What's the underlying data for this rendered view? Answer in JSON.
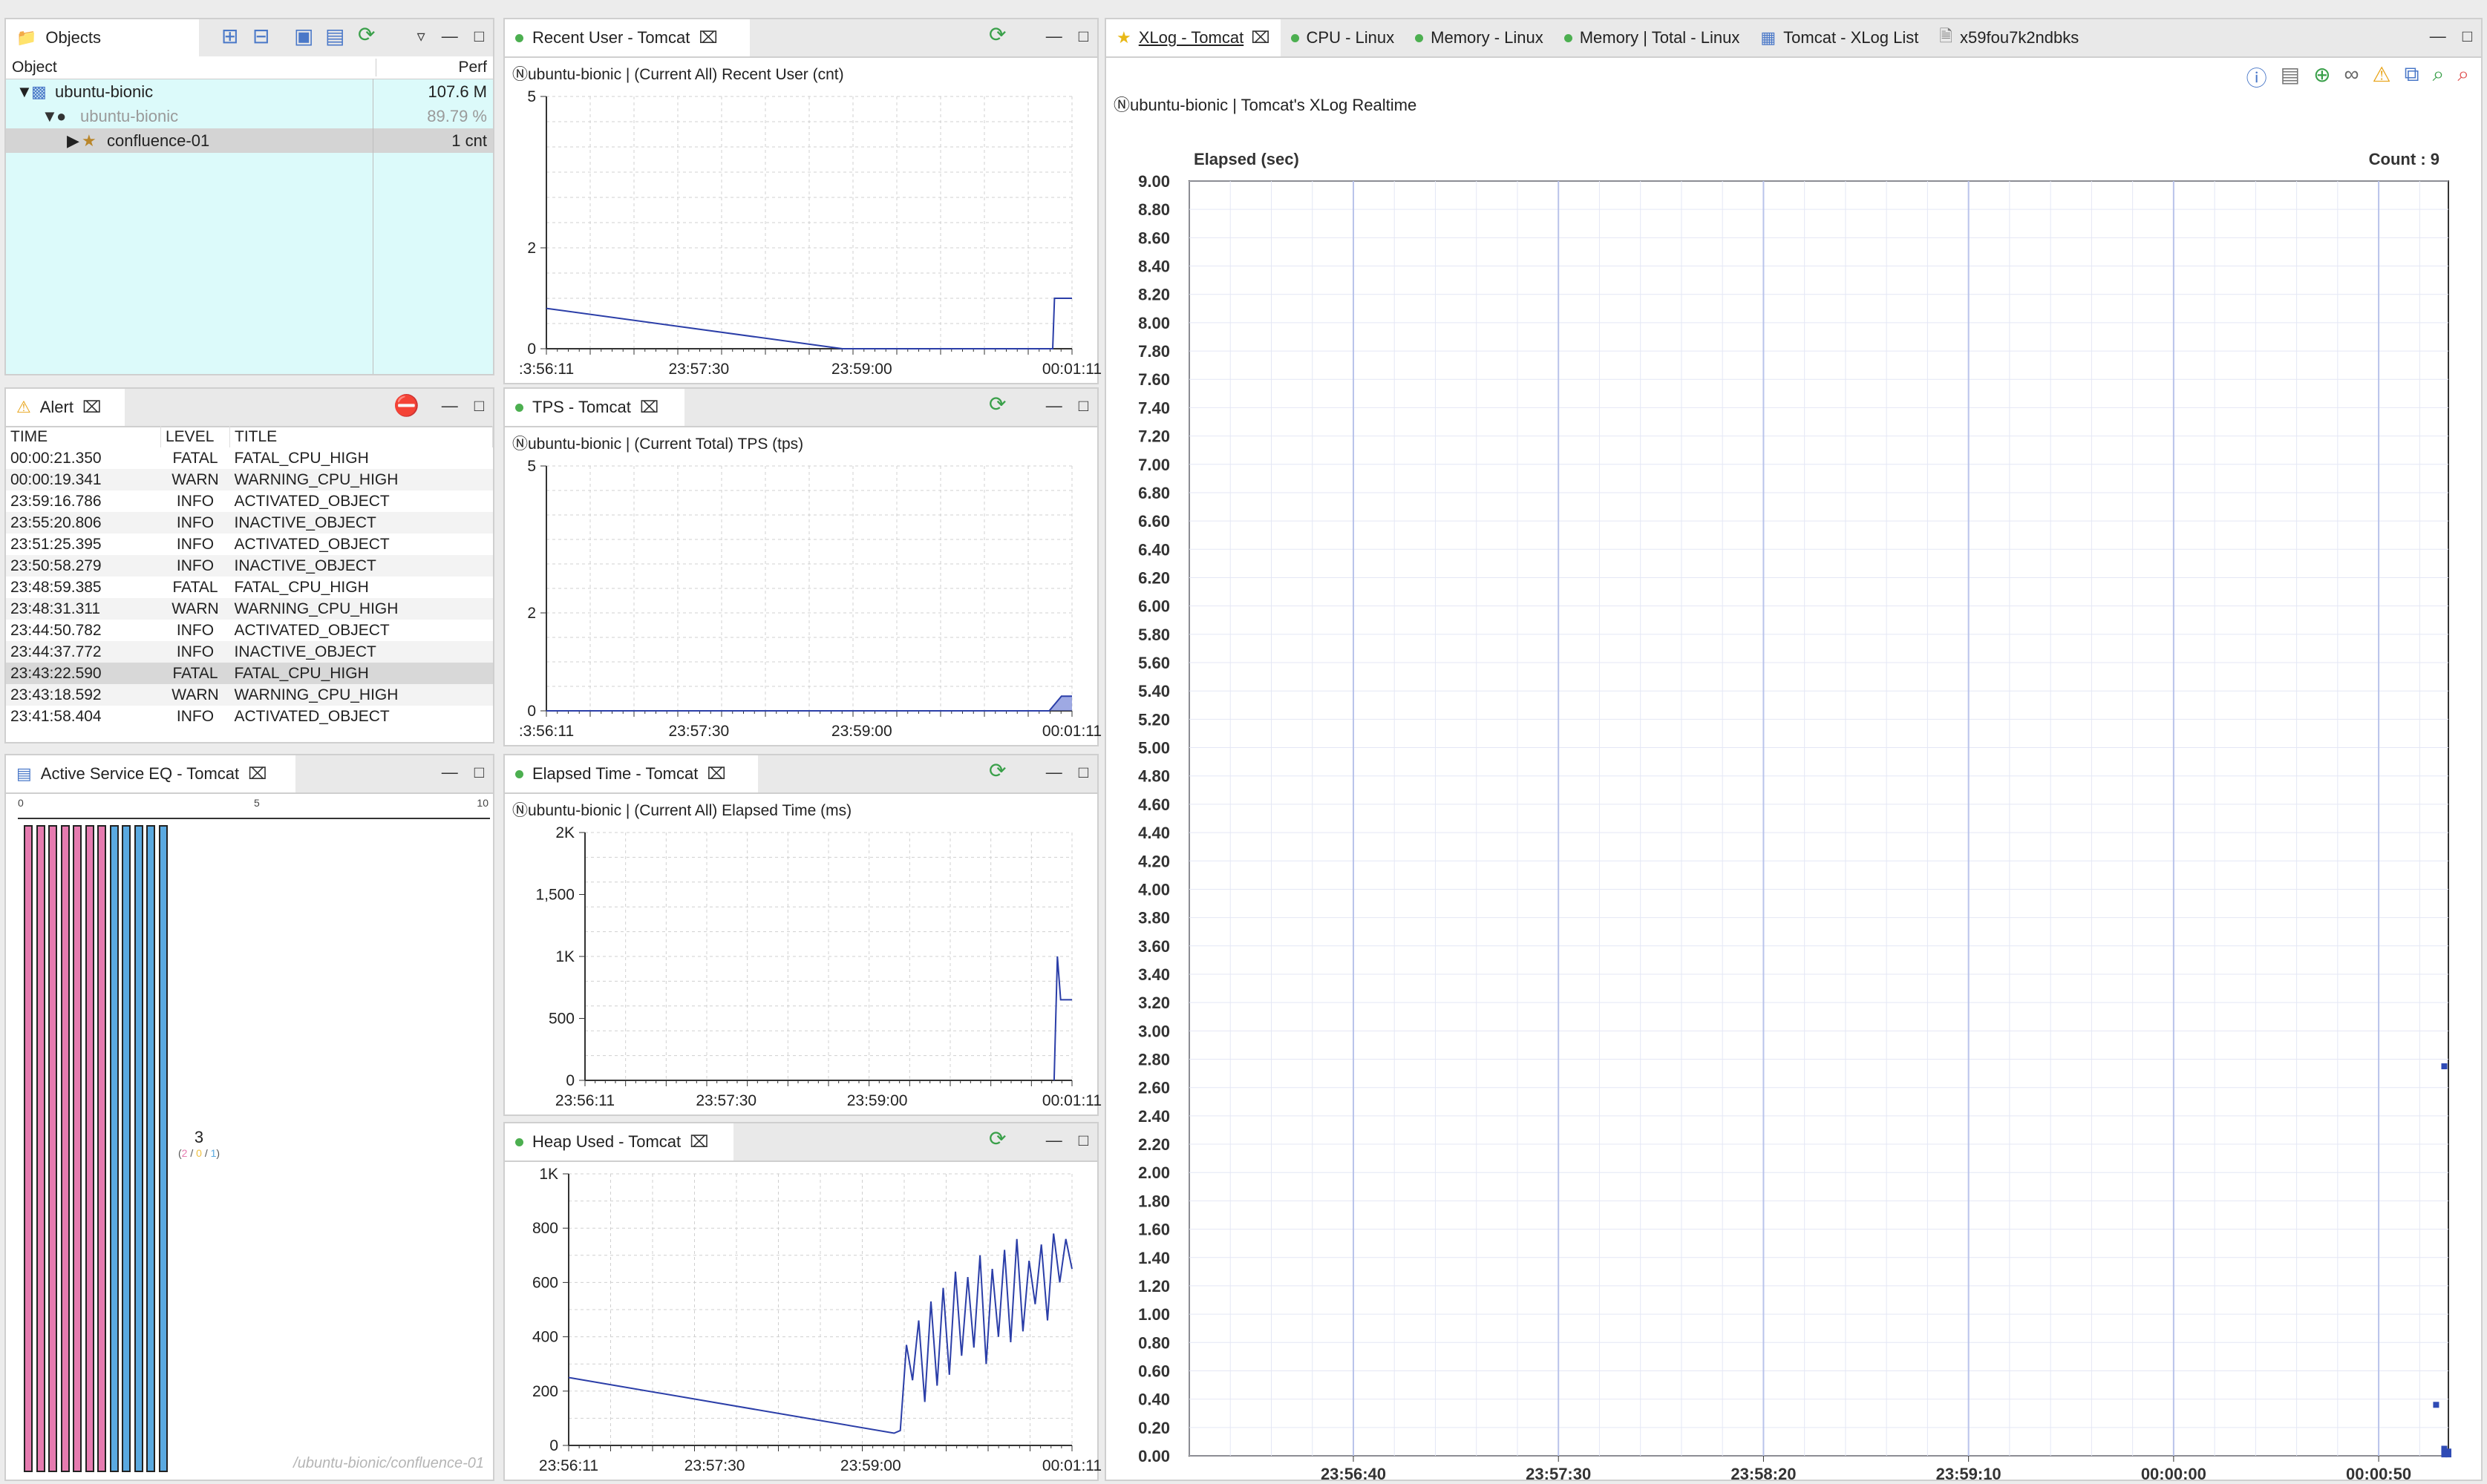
{
  "objects_panel": {
    "tab_label": "Objects",
    "col_object": "Object",
    "col_perf": "Perf",
    "rows": [
      {
        "name": "ubuntu-bionic",
        "perf": "107.6 M"
      },
      {
        "name": "ubuntu-bionic",
        "perf": "89.79 %"
      },
      {
        "name": "confluence-01",
        "perf": "1 cnt"
      }
    ]
  },
  "alert_panel": {
    "tab_label": "Alert",
    "columns": [
      "TIME",
      "LEVEL",
      "TITLE"
    ],
    "rows": [
      [
        "00:00:21.350",
        "FATAL",
        "FATAL_CPU_HIGH"
      ],
      [
        "00:00:19.341",
        "WARN",
        "WARNING_CPU_HIGH"
      ],
      [
        "23:59:16.786",
        "INFO",
        "ACTIVATED_OBJECT"
      ],
      [
        "23:55:20.806",
        "INFO",
        "INACTIVE_OBJECT"
      ],
      [
        "23:51:25.395",
        "INFO",
        "ACTIVATED_OBJECT"
      ],
      [
        "23:50:58.279",
        "INFO",
        "INACTIVE_OBJECT"
      ],
      [
        "23:48:59.385",
        "FATAL",
        "FATAL_CPU_HIGH"
      ],
      [
        "23:48:31.311",
        "WARN",
        "WARNING_CPU_HIGH"
      ],
      [
        "23:44:50.782",
        "INFO",
        "ACTIVATED_OBJECT"
      ],
      [
        "23:44:37.772",
        "INFO",
        "INACTIVE_OBJECT"
      ],
      [
        "23:43:22.590",
        "FATAL",
        "FATAL_CPU_HIGH"
      ],
      [
        "23:43:18.592",
        "WARN",
        "WARNING_CPU_HIGH"
      ],
      [
        "23:41:58.404",
        "INFO",
        "ACTIVATED_OBJECT"
      ]
    ]
  },
  "active_service": {
    "tab_label": "Active Service EQ - Tomcat",
    "scale": [
      "0",
      "5",
      "10"
    ],
    "total": "3",
    "breakdown_open": "(",
    "breakdown_a": "2",
    "breakdown_sep1": " / ",
    "breakdown_b": "0",
    "breakdown_sep2": " / ",
    "breakdown_c": "1",
    "breakdown_close": ")",
    "object_path": "/ubuntu-bionic/confluence-01",
    "pink_bars": 7,
    "blue_bars": 5,
    "colors": {
      "pink": "#e67bb0",
      "blue": "#5aa9e0"
    }
  },
  "charts": [
    {
      "tab_label": "Recent User - Tomcat",
      "subtitle": "ubuntu-bionic | (Current All) Recent User (cnt)",
      "chart_data": {
        "type": "line",
        "y_ticks": [
          "0",
          "2",
          "5"
        ],
        "ylim": [
          0,
          5
        ],
        "x_ticks": [
          ":3:56:11",
          "23:57:30",
          "23:59:00",
          "00:01:11"
        ],
        "series": [
          {
            "x": [
              "23:56:11",
              "23:59:00",
              "00:01:00",
              "00:01:01",
              "00:01:11"
            ],
            "values": [
              0.8,
              0,
              0,
              1,
              1
            ]
          }
        ]
      }
    },
    {
      "tab_label": "TPS - Tomcat",
      "subtitle": "ubuntu-bionic | (Current Total) TPS (tps)",
      "chart_data": {
        "type": "area",
        "y_ticks": [
          "0",
          "2",
          "5"
        ],
        "ylim": [
          0,
          5
        ],
        "x_ticks": [
          ":3:56:11",
          "23:57:30",
          "23:59:00",
          "00:01:11"
        ],
        "series": [
          {
            "x": [
              "23:56:11",
              "00:00:58",
              "00:01:05",
              "00:01:11"
            ],
            "values": [
              0,
              0,
              0.3,
              0.3
            ]
          }
        ]
      }
    },
    {
      "tab_label": "Elapsed Time - Tomcat",
      "subtitle": "ubuntu-bionic | (Current All) Elapsed Time (ms)",
      "chart_data": {
        "type": "line",
        "y_ticks": [
          "0",
          "500",
          "1K",
          "1,500",
          "2K"
        ],
        "ylim": [
          0,
          2000
        ],
        "x_ticks": [
          "23:56:11",
          "23:57:30",
          "23:59:00",
          "00:01:11"
        ],
        "series": [
          {
            "x": [
              "00:01:00",
              "00:01:02",
              "00:01:04",
              "00:01:06",
              "00:01:11"
            ],
            "values": [
              0,
              1000,
              650,
              650,
              650
            ]
          }
        ]
      }
    },
    {
      "tab_label": "Heap Used - Tomcat",
      "subtitle": "",
      "chart_data": {
        "type": "line",
        "y_ticks": [
          "0",
          "200",
          "400",
          "600",
          "800",
          "1K"
        ],
        "ylim": [
          0,
          1000
        ],
        "x_ticks": [
          "23:56:11",
          "23:57:30",
          "23:59:00",
          "00:01:11"
        ],
        "series": [
          {
            "values": [
              250,
              45,
              55,
              370,
              240,
              460,
              160,
              530,
              220,
              580,
              260,
              640,
              330,
              620,
              360,
              700,
              300,
              650,
              400,
              720,
              380,
              760,
              420,
              680,
              520,
              740,
              460,
              780,
              600,
              760,
              650
            ]
          }
        ]
      }
    }
  ],
  "xlog_panel": {
    "tabs": [
      {
        "label": "XLog - Tomcat",
        "active": true
      },
      {
        "label": "CPU - Linux"
      },
      {
        "label": "Memory - Linux"
      },
      {
        "label": "Memory | Total - Linux"
      },
      {
        "label": "Tomcat - XLog List"
      },
      {
        "label": "x59fou7k2ndbks"
      }
    ],
    "title": "ubuntu-bionic | Tomcat's XLog Realtime",
    "y_label": "Elapsed (sec)",
    "count_label": "Count : 9",
    "chart_data": {
      "type": "scatter",
      "ylim": [
        0,
        9
      ],
      "y_ticks": [
        "0.00",
        "0.20",
        "0.40",
        "0.60",
        "0.80",
        "1.00",
        "1.20",
        "1.40",
        "1.60",
        "1.80",
        "2.00",
        "2.20",
        "2.40",
        "2.60",
        "2.80",
        "3.00",
        "3.20",
        "3.40",
        "3.60",
        "3.80",
        "4.00",
        "4.20",
        "4.40",
        "4.60",
        "4.80",
        "5.00",
        "5.20",
        "5.40",
        "5.60",
        "5.80",
        "6.00",
        "6.20",
        "6.40",
        "6.60",
        "6.80",
        "7.00",
        "7.20",
        "7.40",
        "7.60",
        "7.80",
        "8.00",
        "8.20",
        "8.40",
        "8.60",
        "8.80",
        "9.00"
      ],
      "x_ticks": [
        "23:56:40",
        "23:57:30",
        "23:58:20",
        "23:59:10",
        "00:00:00",
        "00:00:50"
      ],
      "points": [
        {
          "x": "00:01:06",
          "y": 2.75
        },
        {
          "x": "00:01:04",
          "y": 0.36
        },
        {
          "x": "00:01:06",
          "y": 0.05
        },
        {
          "x": "00:01:06",
          "y": 0.02
        },
        {
          "x": "00:01:07",
          "y": 0.03
        },
        {
          "x": "00:01:06",
          "y": 0.01
        },
        {
          "x": "00:01:07",
          "y": 0.02
        },
        {
          "x": "00:01:06",
          "y": 0.04
        },
        {
          "x": "00:01:07",
          "y": 0.01
        }
      ]
    }
  }
}
